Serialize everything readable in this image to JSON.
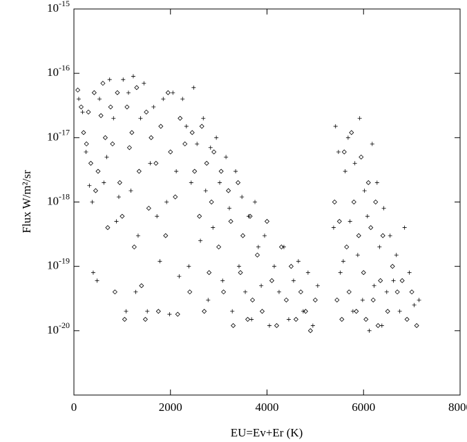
{
  "chart_data": {
    "type": "scatter",
    "xlabel": "EU=Ev+Er (K)",
    "ylabel": "Flux W/m²/sr",
    "xlim": [
      0,
      8000
    ],
    "xticks": [
      0,
      2000,
      4000,
      6000,
      8000
    ],
    "ylim": [
      1e-21,
      1e-15
    ],
    "log_y": true,
    "yticks": [
      {
        "value": 1e-20,
        "label": "10-20"
      },
      {
        "value": 1e-19,
        "label": "10-19"
      },
      {
        "value": 1e-18,
        "label": "10-18"
      },
      {
        "value": 1e-17,
        "label": "10-17"
      },
      {
        "value": 1e-16,
        "label": "10-16"
      },
      {
        "value": 1e-15,
        "label": "10-15"
      }
    ],
    "series": [
      {
        "marker": "diamond",
        "color": "#000000",
        "x": [
          80,
          150,
          200,
          260,
          300,
          350,
          420,
          450,
          500,
          560,
          600,
          650,
          700,
          760,
          800,
          850,
          900,
          950,
          1000,
          1050,
          1100,
          1150,
          1200,
          1250,
          1300,
          1350,
          1400,
          1480,
          1500,
          1550,
          1600,
          1700,
          1750,
          1800,
          1900,
          1950,
          2000,
          2100,
          2150,
          2200,
          2300,
          2400,
          2450,
          2500,
          2600,
          2650,
          2700,
          2750,
          2800,
          2850,
          2900,
          3000,
          3050,
          3100,
          3200,
          3250,
          3300,
          3400,
          3450,
          3500,
          3600,
          3650,
          3700,
          3800,
          3900,
          4000,
          4100,
          4200,
          4300,
          4400,
          4500,
          4600,
          4700,
          4800,
          4900,
          5000,
          5400,
          5450,
          5500,
          5550,
          5600,
          5650,
          5700,
          5750,
          5800,
          5850,
          5900,
          5950,
          6000,
          6050,
          6100,
          6150,
          6200,
          6250,
          6300,
          6350,
          6400,
          6500,
          6600,
          6700,
          6800,
          6900,
          7000,
          7100
        ],
        "values": [
          5.5e-17,
          3e-17,
          1.2e-17,
          8e-18,
          2.5e-17,
          4e-18,
          5e-17,
          1.5e-18,
          3e-18,
          2.2e-17,
          7e-17,
          1e-17,
          4e-19,
          3e-17,
          8e-18,
          4e-20,
          5e-17,
          2e-18,
          6e-19,
          1.5e-20,
          3e-17,
          7e-18,
          1.2e-17,
          2e-19,
          6e-17,
          3e-18,
          5e-20,
          1.5e-20,
          2.5e-17,
          8e-19,
          1e-17,
          4e-18,
          2e-20,
          1.5e-17,
          3e-19,
          5e-17,
          6e-18,
          1.2e-18,
          1.8e-20,
          2e-17,
          8e-18,
          4e-20,
          1.2e-17,
          3e-18,
          6e-19,
          1.5e-17,
          2e-20,
          4e-18,
          8e-20,
          1e-18,
          6e-18,
          2e-19,
          3e-18,
          4e-20,
          1.5e-18,
          5e-19,
          1.2e-20,
          2e-18,
          8e-20,
          3e-19,
          1.5e-20,
          6e-19,
          3e-20,
          1.5e-19,
          2e-20,
          5e-19,
          6e-20,
          1.2e-20,
          2e-19,
          3e-20,
          1e-19,
          1.5e-20,
          4e-20,
          2e-20,
          1e-20,
          3e-20,
          1e-18,
          3e-20,
          5e-19,
          1.5e-20,
          6e-18,
          2e-19,
          4e-20,
          1.2e-17,
          1e-18,
          2e-20,
          3e-19,
          5e-18,
          8e-20,
          1.5e-20,
          2e-18,
          4e-19,
          3e-20,
          1e-18,
          1.2e-20,
          6e-20,
          3e-19,
          2e-20,
          1e-19,
          4e-20,
          6e-20,
          1.5e-20,
          4e-20,
          1.2e-20
        ]
      },
      {
        "marker": "plus",
        "color": "#000000",
        "x": [
          100,
          180,
          250,
          320,
          380,
          400,
          480,
          530,
          620,
          680,
          740,
          820,
          880,
          930,
          1020,
          1080,
          1130,
          1180,
          1230,
          1280,
          1330,
          1380,
          1450,
          1520,
          1580,
          1650,
          1720,
          1780,
          1850,
          1920,
          1980,
          2050,
          2120,
          2180,
          2250,
          2330,
          2380,
          2430,
          2480,
          2550,
          2620,
          2680,
          2730,
          2780,
          2830,
          2880,
          2950,
          3020,
          3080,
          3150,
          3220,
          3280,
          3350,
          3420,
          3480,
          3550,
          3620,
          3680,
          3750,
          3820,
          3880,
          3950,
          4050,
          4150,
          4250,
          4350,
          4450,
          4550,
          4650,
          4750,
          4850,
          4950,
          5050,
          5380,
          5420,
          5480,
          5520,
          5580,
          5620,
          5680,
          5720,
          5780,
          5820,
          5880,
          5920,
          5980,
          6020,
          6080,
          6120,
          6180,
          6220,
          6280,
          6330,
          6380,
          6420,
          6480,
          6550,
          6620,
          6680,
          6750,
          6850,
          6950,
          7050,
          7150
        ],
        "values": [
          4e-17,
          2.5e-17,
          6e-18,
          1.8e-18,
          1e-18,
          8e-20,
          6e-20,
          4e-17,
          2e-18,
          5e-18,
          8e-17,
          2e-17,
          5e-19,
          1.2e-18,
          8e-17,
          2e-20,
          5e-17,
          1.5e-18,
          9e-17,
          4e-20,
          3e-19,
          2e-17,
          7e-17,
          2e-20,
          4e-18,
          3e-17,
          6e-19,
          1.2e-19,
          4e-17,
          1e-18,
          1.8e-20,
          5e-17,
          3e-18,
          7e-20,
          4e-17,
          1.5e-17,
          1e-19,
          2e-18,
          6e-17,
          8e-18,
          2.5e-19,
          2e-17,
          1.5e-18,
          3e-20,
          7e-18,
          4e-19,
          1e-17,
          2e-18,
          6e-20,
          5e-18,
          8e-19,
          2e-20,
          3e-18,
          1e-19,
          1.2e-18,
          4e-20,
          6e-19,
          1.5e-20,
          1e-18,
          2e-19,
          5e-20,
          3e-19,
          1.2e-20,
          1e-19,
          4e-20,
          2e-19,
          1.5e-20,
          6e-20,
          1.2e-19,
          2e-20,
          8e-20,
          1.2e-20,
          5e-20,
          4e-19,
          1.5e-17,
          6e-18,
          8e-20,
          1.2e-19,
          3e-18,
          1e-17,
          5e-19,
          2e-20,
          4e-18,
          1.5e-19,
          2e-17,
          3e-20,
          1.5e-18,
          6e-19,
          1e-20,
          8e-18,
          5e-20,
          2e-18,
          2e-19,
          1.2e-20,
          8e-19,
          4e-20,
          3e-19,
          6e-20,
          1.5e-19,
          2e-20,
          4e-19,
          8e-20,
          2.5e-20,
          3e-20
        ]
      }
    ]
  }
}
